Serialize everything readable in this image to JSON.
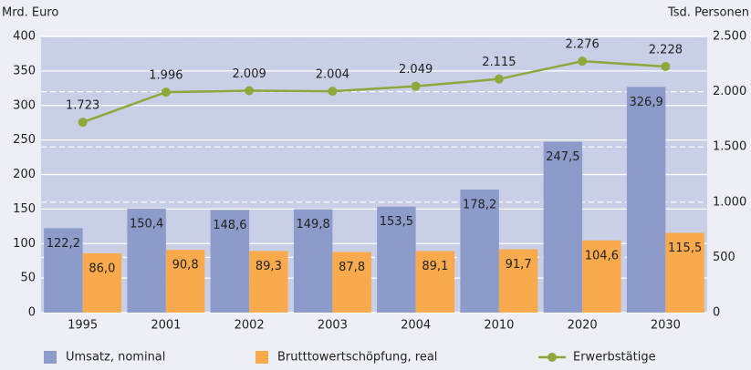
{
  "chart_data": {
    "type": "bar",
    "y_label": "Mrd. Euro",
    "y2_label": "Tsd. Personen",
    "categories": [
      "1995",
      "2001",
      "2002",
      "2003",
      "2004",
      "2010",
      "2020",
      "2030"
    ],
    "series": [
      {
        "name": "Umsatz, nominal",
        "color": "#8c9bc9",
        "values": [
          122.2,
          150.4,
          148.6,
          149.8,
          153.5,
          178.2,
          247.5,
          326.9
        ],
        "value_labels": [
          "122,2",
          "150,4",
          "148,6",
          "149,8",
          "153,5",
          "178,2",
          "247,5",
          "326,9"
        ]
      },
      {
        "name": "Brutttowertschöpfung, real",
        "color": "#f9aa4d",
        "values": [
          86.0,
          90.8,
          89.3,
          87.8,
          89.1,
          91.7,
          104.6,
          115.5
        ],
        "value_labels": [
          "86,0",
          "90,8",
          "89,3",
          "87,8",
          "89,1",
          "91,7",
          "104,6",
          "115,5"
        ]
      },
      {
        "name": "Erwerbstätige",
        "type": "line",
        "axis": "y2",
        "color": "#8ea83b",
        "values": [
          1723,
          1996,
          2009,
          2004,
          2049,
          2115,
          2276,
          2228
        ],
        "value_labels": [
          "1.723",
          "1.996",
          "2.009",
          "2.004",
          "2.049",
          "2.115",
          "2.276",
          "2.228"
        ]
      }
    ],
    "ylim": [
      0,
      400
    ],
    "yticks": [
      0,
      50,
      100,
      150,
      200,
      250,
      300,
      350,
      400
    ],
    "y2lim": [
      0,
      2500
    ],
    "y2ticks": [
      0,
      500,
      {
        "value": 1000,
        "label": "1.000"
      },
      {
        "value": 1500,
        "label": "1.500"
      },
      {
        "value": 2000,
        "label": "2.000"
      },
      {
        "value": 2500,
        "label": "2.500"
      }
    ],
    "grid": true,
    "legend": "bottom"
  }
}
